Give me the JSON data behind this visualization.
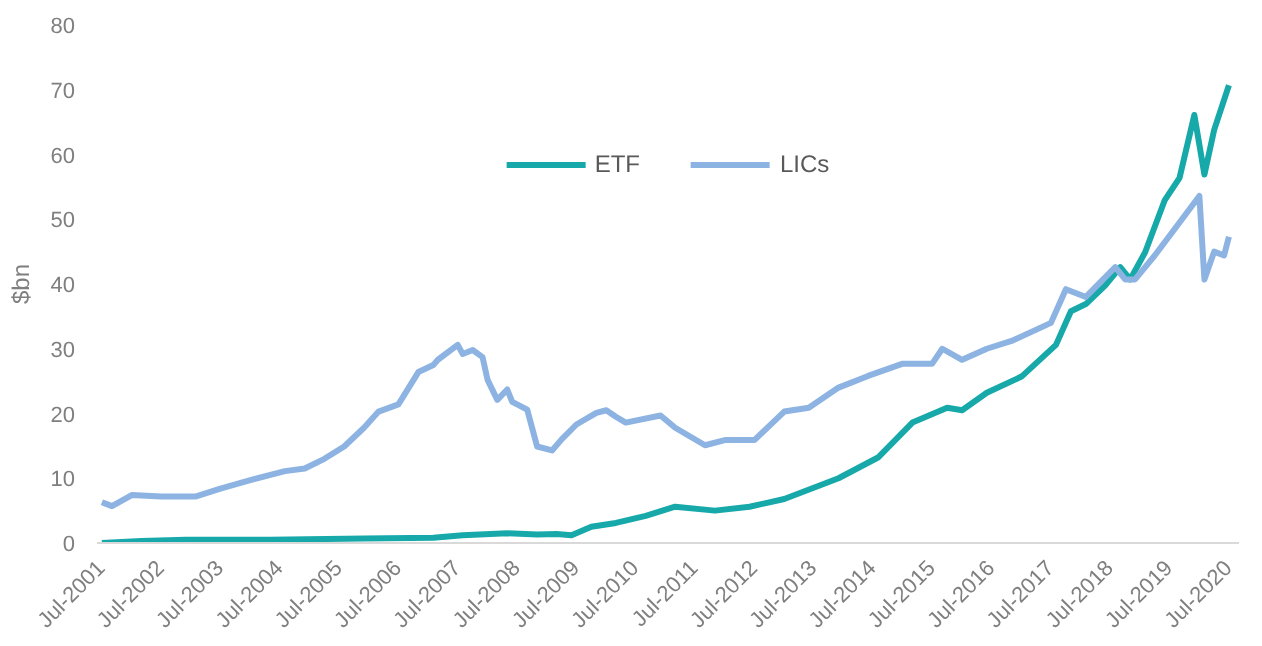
{
  "chart_data": {
    "type": "line",
    "ylabel": "$bn",
    "ylim": [
      0,
      80
    ],
    "yticks": [
      0,
      10,
      20,
      30,
      40,
      50,
      60,
      70,
      80
    ],
    "xlim": [
      "2001-06",
      "2020-09"
    ],
    "xticks": [
      {
        "value": "2001-07",
        "label": "Jul-2001"
      },
      {
        "value": "2002-07",
        "label": "Jul-2002"
      },
      {
        "value": "2003-07",
        "label": "Jul-2003"
      },
      {
        "value": "2004-07",
        "label": "Jul-2004"
      },
      {
        "value": "2005-07",
        "label": "Jul-2005"
      },
      {
        "value": "2006-07",
        "label": "Jul-2006"
      },
      {
        "value": "2007-07",
        "label": "Jul-2007"
      },
      {
        "value": "2008-07",
        "label": "Jul-2008"
      },
      {
        "value": "2009-07",
        "label": "Jul-2009"
      },
      {
        "value": "2010-07",
        "label": "Jul-2010"
      },
      {
        "value": "2011-07",
        "label": "Jul-2011"
      },
      {
        "value": "2012-07",
        "label": "Jul-2012"
      },
      {
        "value": "2013-07",
        "label": "Jul-2013"
      },
      {
        "value": "2014-07",
        "label": "Jul-2014"
      },
      {
        "value": "2015-07",
        "label": "Jul-2015"
      },
      {
        "value": "2016-07",
        "label": "Jul-2016"
      },
      {
        "value": "2017-07",
        "label": "Jul-2017"
      },
      {
        "value": "2018-07",
        "label": "Jul-2018"
      },
      {
        "value": "2019-07",
        "label": "Jul-2019"
      },
      {
        "value": "2020-07",
        "label": "Jul-2020"
      }
    ],
    "grid": false,
    "legend": "top",
    "marker": "none",
    "line_style": "solid",
    "series": [
      {
        "name": "ETF",
        "color": "#17a9a9",
        "x": [
          "2001-07",
          "2002-03",
          "2002-12",
          "2004-05",
          "2005-12",
          "2007-02",
          "2007-08",
          "2008-05",
          "2008-11",
          "2009-03",
          "2009-06",
          "2009-10",
          "2010-03",
          "2010-09",
          "2011-03",
          "2011-11",
          "2012-06",
          "2013-01",
          "2013-12",
          "2014-08",
          "2015-03",
          "2015-10",
          "2016-01",
          "2016-06",
          "2017-01",
          "2017-08",
          "2017-11",
          "2018-02",
          "2018-06",
          "2018-09",
          "2018-11",
          "2019-02",
          "2019-06",
          "2019-09",
          "2019-12",
          "2020-02",
          "2020-04",
          "2020-07"
        ],
        "values": [
          0.0,
          0.3,
          0.5,
          0.5,
          0.7,
          0.8,
          1.2,
          1.5,
          1.3,
          1.4,
          1.2,
          2.5,
          3.1,
          4.2,
          5.6,
          5.0,
          5.6,
          6.8,
          10.0,
          13.2,
          18.6,
          20.9,
          20.5,
          23.2,
          25.7,
          30.6,
          35.8,
          36.9,
          39.8,
          42.6,
          40.7,
          44.9,
          52.9,
          56.4,
          66.1,
          56.9,
          63.8,
          70.7
        ]
      },
      {
        "name": "LICs",
        "color": "#8db3e2",
        "x": [
          "2001-07",
          "2001-09",
          "2002-01",
          "2002-07",
          "2003-02",
          "2003-07",
          "2004-01",
          "2004-08",
          "2004-12",
          "2005-04",
          "2005-08",
          "2005-12",
          "2006-03",
          "2006-07",
          "2006-11",
          "2007-02",
          "2007-03",
          "2007-07",
          "2007-08",
          "2007-10",
          "2007-12",
          "2008-01",
          "2008-03",
          "2008-05",
          "2008-06",
          "2008-09",
          "2008-11",
          "2009-02",
          "2009-04",
          "2009-07",
          "2009-11",
          "2010-01",
          "2010-03",
          "2010-05",
          "2010-12",
          "2011-03",
          "2011-09",
          "2012-01",
          "2012-07",
          "2013-01",
          "2013-06",
          "2013-12",
          "2014-06",
          "2015-01",
          "2015-07",
          "2015-09",
          "2016-01",
          "2016-06",
          "2016-11",
          "2017-07",
          "2017-10",
          "2018-02",
          "2018-08",
          "2018-10",
          "2018-12",
          "2019-04",
          "2019-09",
          "2020-01",
          "2020-02",
          "2020-04",
          "2020-06",
          "2020-07"
        ],
        "values": [
          6.3,
          5.7,
          7.4,
          7.2,
          7.2,
          8.4,
          9.7,
          11.1,
          11.5,
          13.0,
          14.9,
          17.8,
          20.3,
          21.4,
          26.4,
          27.5,
          28.3,
          30.6,
          29.2,
          29.8,
          28.7,
          25.2,
          22.1,
          23.7,
          21.8,
          20.6,
          14.9,
          14.3,
          16.0,
          18.3,
          20.1,
          20.5,
          19.5,
          18.6,
          19.7,
          17.8,
          15.1,
          15.9,
          15.9,
          20.3,
          20.9,
          24.0,
          25.8,
          27.7,
          27.7,
          30.0,
          28.3,
          30.0,
          31.2,
          34.0,
          39.2,
          38.0,
          42.6,
          40.7,
          40.7,
          44.4,
          49.5,
          53.6,
          40.7,
          45.0,
          44.4,
          47.3
        ]
      }
    ]
  }
}
